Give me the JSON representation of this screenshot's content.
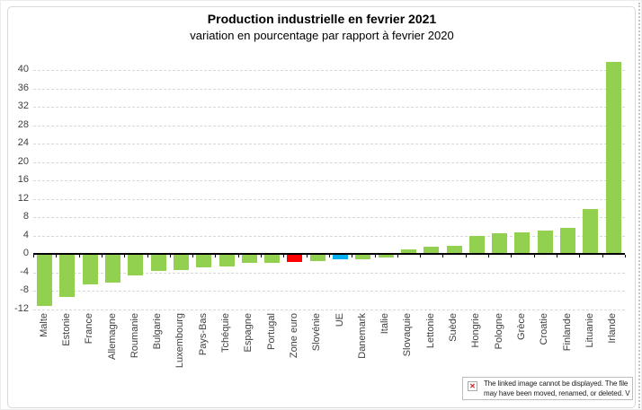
{
  "chart_data": {
    "type": "bar",
    "title": "Production industrielle en fevrier 2021",
    "subtitle": "variation en pourcentage par rapport à fevrier 2020",
    "categories": [
      "Malte",
      "Estonie",
      "France",
      "Allemagne",
      "Roumanie",
      "Bulgarie",
      "Luxembourg",
      "Pays-Bas",
      "Tchéquie",
      "Espagne",
      "Portugal",
      "Zone euro",
      "Slovénie",
      "UE",
      "Danemark",
      "Italie",
      "Slovaquie",
      "Lettonie",
      "Suède",
      "Hongrie",
      "Pologne",
      "Grèce",
      "Croatie",
      "Finlande",
      "Lituanie",
      "Irlande"
    ],
    "values": [
      -11.2,
      -9.1,
      -6.5,
      -6.0,
      -4.4,
      -3.5,
      -3.3,
      -2.8,
      -2.6,
      -1.8,
      -1.7,
      -1.6,
      -1.3,
      -1.0,
      -0.9,
      -0.6,
      1.0,
      1.6,
      1.7,
      3.9,
      4.5,
      4.7,
      5.0,
      5.7,
      9.8,
      41.8
    ],
    "bar_color_default": "#92d050",
    "bar_color_overrides": {
      "Zone euro": "#ff0000",
      "UE": "#00b0f0"
    },
    "ytick_labels": [
      "40",
      "36",
      "32",
      "28",
      "24",
      "20",
      "16",
      "12",
      "8",
      "4",
      "0",
      "-4",
      "-8",
      "-12"
    ],
    "ylim": [
      -12,
      42
    ],
    "xlabel": "",
    "ylabel": "",
    "grid": "horizontal-dashed",
    "legend": "none"
  },
  "placeholder": {
    "line1": "The linked image cannot be displayed.  The file",
    "line2": "may have been moved, renamed, or deleted. V",
    "icon_glyph": "✕"
  }
}
